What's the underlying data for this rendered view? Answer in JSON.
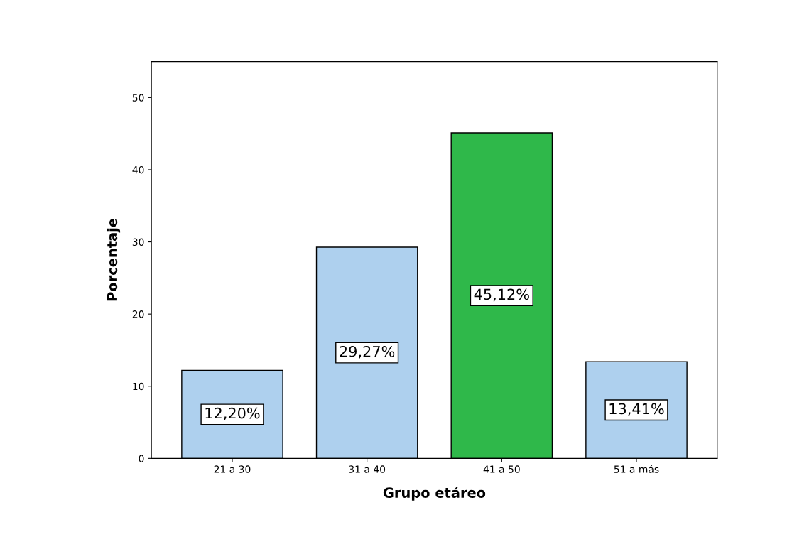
{
  "chart_data": {
    "type": "bar",
    "xlabel": "Grupo etáreo",
    "ylabel": "Porcentaje",
    "categories": [
      "21 a 30",
      "31 a 40",
      "41 a 50",
      "51 a más"
    ],
    "values": [
      12.2,
      29.27,
      45.12,
      13.41
    ],
    "colors": [
      "#aed0ee",
      "#aed0ee",
      "#2fb84a",
      "#aed0ee"
    ],
    "value_labels": [
      "12,20%",
      "29,27%",
      "45,12%",
      "13,41%"
    ],
    "ylim": [
      0,
      55
    ],
    "yticks": [
      0,
      10,
      20,
      30,
      40,
      50
    ],
    "grid": false
  }
}
